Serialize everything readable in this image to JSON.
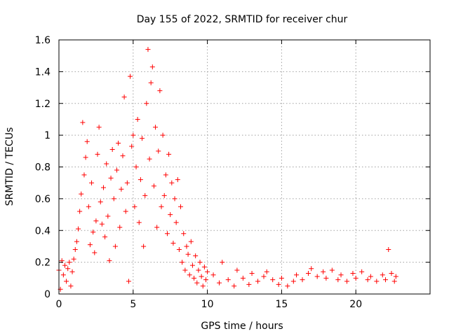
{
  "chart_data": {
    "type": "scatter",
    "title": "Day 155 of 2022, SRMTID for receiver chur",
    "xlabel": "GPS time / hours",
    "ylabel": "SRMTID / TECUs",
    "xlim": [
      0,
      25
    ],
    "ylim": [
      0,
      1.6
    ],
    "x_ticks": [
      0,
      5,
      10,
      15,
      20
    ],
    "x_tick_labels": [
      "0",
      "5",
      "10",
      "15",
      "20"
    ],
    "y_ticks": [
      0,
      0.2,
      0.4,
      0.6,
      0.8,
      1.0,
      1.2,
      1.4,
      1.6
    ],
    "y_tick_labels": [
      "0",
      "0.2",
      "0.4",
      "0.6",
      "0.8",
      "1",
      "1.2",
      "1.4",
      "1.6"
    ],
    "grid": true,
    "marker": "+",
    "series": [
      {
        "name": "SRMTID",
        "color": "#ff0000",
        "points": [
          [
            0.0,
            0.15
          ],
          [
            0.1,
            0.03
          ],
          [
            0.2,
            0.21
          ],
          [
            0.3,
            0.12
          ],
          [
            0.4,
            0.18
          ],
          [
            0.5,
            0.08
          ],
          [
            0.6,
            0.16
          ],
          [
            0.7,
            0.2
          ],
          [
            0.8,
            0.05
          ],
          [
            0.9,
            0.14
          ],
          [
            1.0,
            0.22
          ],
          [
            1.1,
            0.28
          ],
          [
            1.2,
            0.33
          ],
          [
            1.3,
            0.41
          ],
          [
            1.4,
            0.52
          ],
          [
            1.5,
            0.63
          ],
          [
            1.6,
            1.08
          ],
          [
            1.7,
            0.75
          ],
          [
            1.8,
            0.86
          ],
          [
            1.9,
            0.96
          ],
          [
            2.0,
            0.55
          ],
          [
            2.1,
            0.31
          ],
          [
            2.2,
            0.7
          ],
          [
            2.3,
            0.39
          ],
          [
            2.4,
            0.26
          ],
          [
            2.5,
            0.46
          ],
          [
            2.6,
            0.88
          ],
          [
            2.7,
            1.05
          ],
          [
            2.8,
            0.58
          ],
          [
            2.9,
            0.44
          ],
          [
            3.0,
            0.67
          ],
          [
            3.1,
            0.36
          ],
          [
            3.2,
            0.82
          ],
          [
            3.3,
            0.49
          ],
          [
            3.4,
            0.21
          ],
          [
            3.5,
            0.73
          ],
          [
            3.6,
            0.91
          ],
          [
            3.7,
            0.6
          ],
          [
            3.8,
            0.3
          ],
          [
            3.9,
            0.78
          ],
          [
            4.0,
            0.95
          ],
          [
            4.1,
            0.42
          ],
          [
            4.2,
            0.66
          ],
          [
            4.3,
            0.87
          ],
          [
            4.4,
            1.24
          ],
          [
            4.5,
            0.52
          ],
          [
            4.6,
            0.7
          ],
          [
            4.7,
            0.08
          ],
          [
            4.8,
            1.37
          ],
          [
            4.9,
            0.93
          ],
          [
            5.0,
            1.0
          ],
          [
            5.1,
            0.55
          ],
          [
            5.2,
            0.8
          ],
          [
            5.3,
            1.1
          ],
          [
            5.4,
            0.45
          ],
          [
            5.5,
            0.72
          ],
          [
            5.6,
            0.98
          ],
          [
            5.7,
            0.3
          ],
          [
            5.8,
            0.62
          ],
          [
            5.9,
            1.2
          ],
          [
            6.0,
            1.54
          ],
          [
            6.1,
            0.85
          ],
          [
            6.2,
            1.33
          ],
          [
            6.3,
            1.43
          ],
          [
            6.4,
            0.68
          ],
          [
            6.5,
            1.05
          ],
          [
            6.6,
            0.42
          ],
          [
            6.7,
            0.9
          ],
          [
            6.8,
            1.28
          ],
          [
            6.9,
            0.55
          ],
          [
            7.0,
            1.0
          ],
          [
            7.1,
            0.62
          ],
          [
            7.2,
            0.75
          ],
          [
            7.3,
            0.38
          ],
          [
            7.4,
            0.88
          ],
          [
            7.5,
            0.5
          ],
          [
            7.6,
            0.7
          ],
          [
            7.7,
            0.32
          ],
          [
            7.8,
            0.6
          ],
          [
            7.9,
            0.45
          ],
          [
            8.0,
            0.72
          ],
          [
            8.1,
            0.28
          ],
          [
            8.2,
            0.55
          ],
          [
            8.3,
            0.2
          ],
          [
            8.4,
            0.38
          ],
          [
            8.5,
            0.15
          ],
          [
            8.6,
            0.3
          ],
          [
            8.7,
            0.25
          ],
          [
            8.8,
            0.12
          ],
          [
            8.9,
            0.33
          ],
          [
            9.0,
            0.18
          ],
          [
            9.1,
            0.1
          ],
          [
            9.2,
            0.24
          ],
          [
            9.3,
            0.07
          ],
          [
            9.4,
            0.15
          ],
          [
            9.5,
            0.2
          ],
          [
            9.6,
            0.11
          ],
          [
            9.7,
            0.05
          ],
          [
            9.8,
            0.17
          ],
          [
            9.9,
            0.09
          ],
          [
            10.0,
            0.14
          ],
          [
            10.4,
            0.12
          ],
          [
            10.8,
            0.07
          ],
          [
            11.0,
            0.2
          ],
          [
            11.4,
            0.09
          ],
          [
            11.8,
            0.05
          ],
          [
            12.0,
            0.15
          ],
          [
            12.4,
            0.1
          ],
          [
            12.8,
            0.06
          ],
          [
            13.0,
            0.13
          ],
          [
            13.4,
            0.08
          ],
          [
            13.8,
            0.11
          ],
          [
            14.0,
            0.14
          ],
          [
            14.4,
            0.09
          ],
          [
            14.8,
            0.06
          ],
          [
            15.0,
            0.1
          ],
          [
            15.4,
            0.05
          ],
          [
            15.8,
            0.08
          ],
          [
            16.0,
            0.12
          ],
          [
            16.4,
            0.09
          ],
          [
            16.8,
            0.13
          ],
          [
            17.0,
            0.16
          ],
          [
            17.4,
            0.11
          ],
          [
            17.8,
            0.14
          ],
          [
            18.0,
            0.1
          ],
          [
            18.4,
            0.15
          ],
          [
            18.8,
            0.09
          ],
          [
            19.0,
            0.12
          ],
          [
            19.4,
            0.08
          ],
          [
            19.8,
            0.13
          ],
          [
            20.0,
            0.1
          ],
          [
            20.4,
            0.14
          ],
          [
            20.8,
            0.09
          ],
          [
            21.0,
            0.11
          ],
          [
            21.4,
            0.08
          ],
          [
            21.8,
            0.12
          ],
          [
            22.0,
            0.09
          ],
          [
            22.2,
            0.28
          ],
          [
            22.4,
            0.13
          ],
          [
            22.6,
            0.08
          ],
          [
            22.7,
            0.11
          ]
        ]
      }
    ]
  }
}
